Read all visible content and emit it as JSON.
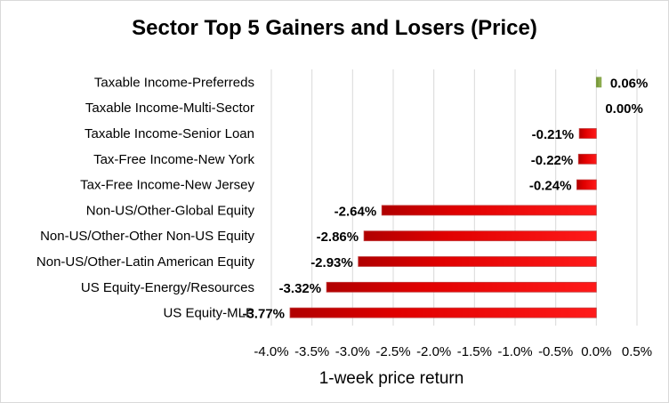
{
  "chart_data": {
    "type": "bar",
    "orientation": "horizontal",
    "title": "Sector Top 5 Gainers and Losers (Price)",
    "xlabel": "1-week price return",
    "ylabel": "",
    "xlim": [
      -4.0,
      0.5
    ],
    "x_ticks": [
      "-4.0%",
      "-3.5%",
      "-3.0%",
      "-2.5%",
      "-2.0%",
      "-1.5%",
      "-1.0%",
      "-0.5%",
      "0.0%",
      "0.5%"
    ],
    "x_tick_values": [
      -4.0,
      -3.5,
      -3.0,
      -2.5,
      -2.0,
      -1.5,
      -1.0,
      -0.5,
      0.0,
      0.5
    ],
    "grid": true,
    "legend": false,
    "categories": [
      "Taxable Income-Preferreds",
      "Taxable Income-Multi-Sector",
      "Taxable Income-Senior Loan",
      "Tax-Free Income-New York",
      "Tax-Free Income-New Jersey",
      "Non-US/Other-Global Equity",
      "Non-US/Other-Other Non-US Equity",
      "Non-US/Other-Latin American Equity",
      "US Equity-Energy/Resources",
      "US Equity-MLP"
    ],
    "values": [
      0.06,
      0.0,
      -0.21,
      -0.22,
      -0.24,
      -2.64,
      -2.86,
      -2.93,
      -3.32,
      -3.77
    ],
    "data_labels": [
      "0.06%",
      "0.00%",
      "-0.21%",
      "-0.22%",
      "-0.24%",
      "-2.64%",
      "-2.86%",
      "-2.93%",
      "-3.32%",
      "-3.77%"
    ],
    "colors": {
      "gainer": "#9bbb59",
      "gainer_dark": "#6e8f32",
      "loser": "#ff0000",
      "loser_dark": "#b00000",
      "grid": "#d9d9d9"
    }
  }
}
